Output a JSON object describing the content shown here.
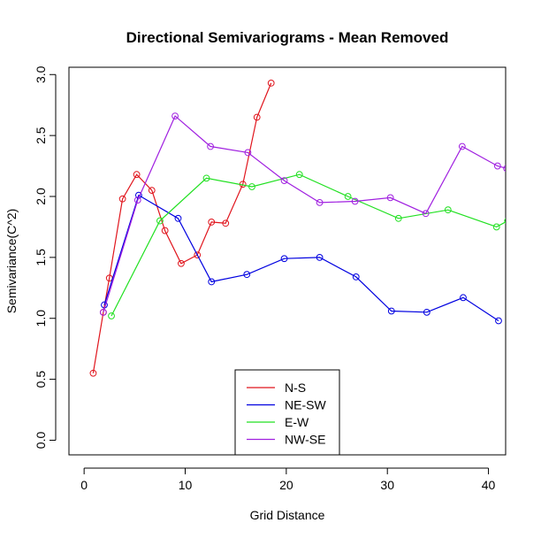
{
  "chart_data": {
    "type": "line",
    "title": "Directional Semivariograms - Mean Removed",
    "xlabel": "Grid Distance",
    "ylabel": "Semivariance(C^2)",
    "xlim": [
      -1.5,
      41.7
    ],
    "ylim": [
      -0.12,
      3.06
    ],
    "xticks": [
      0,
      10,
      20,
      30,
      40
    ],
    "xtick_labels": [
      "0",
      "10",
      "20",
      "30",
      "40"
    ],
    "yticks": [
      0.0,
      0.5,
      1.0,
      1.5,
      2.0,
      2.5,
      3.0
    ],
    "ytick_labels": [
      "0.0",
      "0.5",
      "1.0",
      "1.5",
      "2.0",
      "2.5",
      "3.0"
    ],
    "grid": false,
    "legend_position": "bottom-center",
    "series": [
      {
        "name": "N-S",
        "color": "#e0141c",
        "x": [
          0.9,
          1.9,
          2.5,
          3.8,
          5.2,
          6.7,
          8.0,
          9.6,
          11.2,
          12.6,
          14.0,
          15.7,
          17.1,
          18.5
        ],
        "y": [
          0.55,
          1.05,
          1.33,
          1.98,
          2.18,
          2.05,
          1.72,
          1.45,
          1.52,
          1.79,
          1.78,
          2.1,
          2.65,
          2.93
        ]
      },
      {
        "name": "NE-SW",
        "color": "#0000e0",
        "x": [
          2.0,
          5.4,
          9.3,
          12.6,
          16.1,
          19.8,
          23.3,
          26.9,
          30.4,
          33.9,
          37.5,
          41.0
        ],
        "y": [
          1.11,
          2.01,
          1.82,
          1.3,
          1.36,
          1.49,
          1.5,
          1.34,
          1.06,
          1.05,
          1.17,
          0.98
        ]
      },
      {
        "name": "E-W",
        "color": "#20e020",
        "x": [
          2.7,
          7.5,
          12.1,
          16.6,
          21.3,
          26.1,
          31.1,
          36.0,
          40.8,
          41.9
        ],
        "y": [
          1.02,
          1.8,
          2.15,
          2.08,
          2.18,
          2.0,
          1.82,
          1.89,
          1.75,
          1.8
        ]
      },
      {
        "name": "NW-SE",
        "color": "#a020e0",
        "x": [
          1.9,
          5.3,
          9.0,
          12.5,
          16.2,
          19.8,
          23.3,
          26.8,
          30.3,
          33.8,
          37.4,
          40.9,
          41.8
        ],
        "y": [
          1.05,
          1.97,
          2.66,
          2.41,
          2.36,
          2.13,
          1.95,
          1.96,
          1.99,
          1.86,
          2.41,
          2.25,
          2.23
        ]
      }
    ]
  }
}
